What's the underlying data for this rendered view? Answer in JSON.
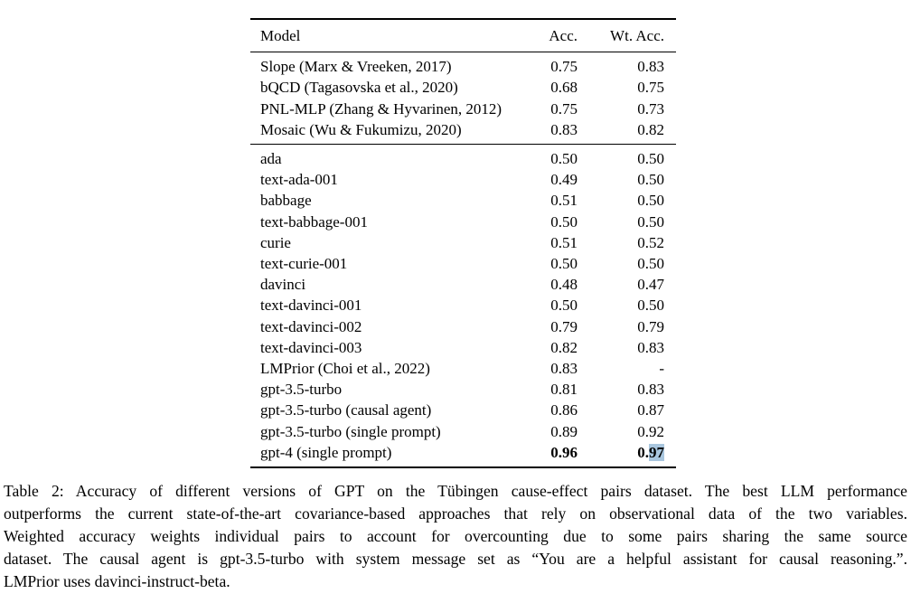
{
  "table": {
    "header": {
      "model": "Model",
      "acc": "Acc.",
      "wt_acc": "Wt. Acc."
    },
    "selection_color": "#a9c6de",
    "sections": [
      {
        "rows": [
          {
            "model": "Slope (Marx & Vreeken, 2017)",
            "acc": "0.75",
            "wt_acc": "0.83"
          },
          {
            "model": "bQCD (Tagasovska et al., 2020)",
            "acc": "0.68",
            "wt_acc": "0.75"
          },
          {
            "model": "PNL-MLP (Zhang & Hyvarinen, 2012)",
            "acc": "0.75",
            "wt_acc": "0.73"
          },
          {
            "model": "Mosaic (Wu & Fukumizu, 2020)",
            "acc": "0.83",
            "wt_acc": "0.82"
          }
        ]
      },
      {
        "rows": [
          {
            "model": "ada",
            "acc": "0.50",
            "wt_acc": "0.50"
          },
          {
            "model": "text-ada-001",
            "acc": "0.49",
            "wt_acc": "0.50"
          },
          {
            "model": "babbage",
            "acc": "0.51",
            "wt_acc": "0.50"
          },
          {
            "model": "text-babbage-001",
            "acc": "0.50",
            "wt_acc": "0.50"
          },
          {
            "model": "curie",
            "acc": "0.51",
            "wt_acc": "0.52"
          },
          {
            "model": "text-curie-001",
            "acc": "0.50",
            "wt_acc": "0.50"
          },
          {
            "model": "davinci",
            "acc": "0.48",
            "wt_acc": "0.47"
          },
          {
            "model": "text-davinci-001",
            "acc": "0.50",
            "wt_acc": "0.50"
          },
          {
            "model": "text-davinci-002",
            "acc": "0.79",
            "wt_acc": "0.79"
          },
          {
            "model": "text-davinci-003",
            "acc": "0.82",
            "wt_acc": "0.83"
          },
          {
            "model": "LMPrior (Choi et al., 2022)",
            "acc": "0.83",
            "wt_acc": "-"
          },
          {
            "model": "gpt-3.5-turbo",
            "acc": "0.81",
            "wt_acc": "0.83"
          },
          {
            "model": "gpt-3.5-turbo (causal agent)",
            "acc": "0.86",
            "wt_acc": "0.87"
          },
          {
            "model": "gpt-3.5-turbo (single prompt)",
            "acc": "0.89",
            "wt_acc": "0.92"
          },
          {
            "model": "gpt-4 (single prompt)",
            "acc": "0.96",
            "wt_acc": "0.97",
            "bold": true,
            "wt_acc_selected_suffix": "97"
          }
        ]
      }
    ]
  },
  "caption": {
    "lines": [
      "Table 2: Accuracy of different versions of GPT on the Tübingen cause-effect pairs dataset. The best LLM performance",
      "outperforms the current state-of-the-art covariance-based approaches that rely on observational data of the two variables.",
      "Weighted accuracy weights individual pairs to account for overcounting due to some pairs sharing the same source",
      "dataset. The causal agent is gpt-3.5-turbo with system message set as “You are a helpful assistant for causal reasoning.”.",
      "LMPrior uses davinci-instruct-beta."
    ]
  }
}
